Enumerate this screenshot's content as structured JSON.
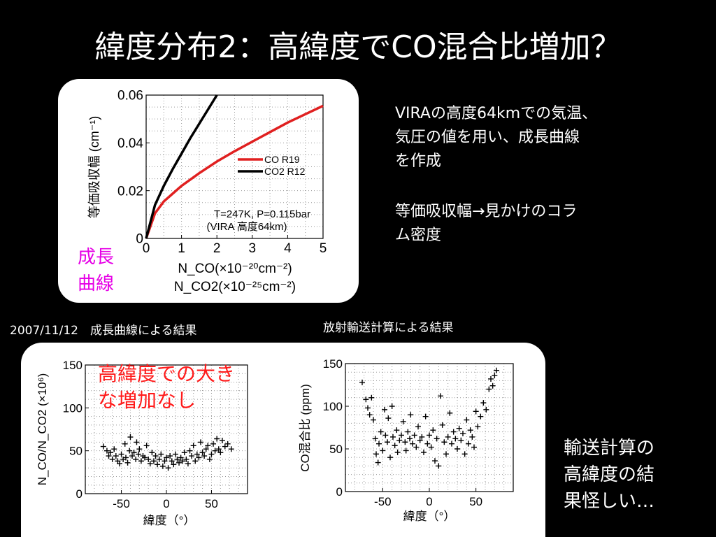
{
  "slide": {
    "title": "緯度分布2：高緯度でCO混合比増加？",
    "growth_curve_label_line1": "成長",
    "growth_curve_label_line2": "曲線",
    "note1_line1": "VIRAの高度64kmでの気温、",
    "note1_line2": "気圧の値を用い、成長曲線",
    "note1_line3": "を作成",
    "note2_line1": "等価吸収幅→見かけのコラ",
    "note2_line2": "ム密度",
    "left_caption": "2007/11/12　成長曲線による結果",
    "right_caption": "放射輸送計算による結果",
    "red_note_line1": "高緯度での大き",
    "red_note_line2": "な増加なし",
    "conclusion_line1": "輸送計算の",
    "conclusion_line2": "高緯度の結",
    "conclusion_line3": "果怪しい…"
  },
  "chart_data": [
    {
      "type": "line",
      "ylabel": "等価吸収幅 (cm⁻¹)",
      "xlabel_line1": "N_CO(×10⁻²⁰cm⁻²)",
      "xlabel_line2": "N_CO2(×10⁻²⁵cm⁻²)",
      "xlim": [
        0,
        5
      ],
      "ylim": [
        0,
        0.06
      ],
      "xticks": [
        "0",
        "1",
        "2",
        "3",
        "4",
        "5"
      ],
      "yticks": [
        "0",
        "0.02",
        "0.04",
        "0.06"
      ],
      "grid": true,
      "legend_position": "middle-right",
      "annotation_line1": "T=247K, P=0.115bar",
      "annotation_line2": "(VIRA 高度64km)",
      "series": [
        {
          "name": "CO R19",
          "color": "#e02020",
          "x": [
            0,
            0.25,
            0.5,
            1.0,
            1.5,
            2.0,
            2.5,
            3.0,
            3.5,
            4.0,
            4.5,
            5.0
          ],
          "y": [
            0,
            0.0105,
            0.0155,
            0.022,
            0.0273,
            0.0322,
            0.0365,
            0.0405,
            0.0445,
            0.0485,
            0.052,
            0.0555
          ]
        },
        {
          "name": "CO2 R12",
          "color": "#000000",
          "x": [
            0,
            0.25,
            0.5,
            0.75,
            1.0,
            1.25,
            1.5,
            1.75,
            2.0
          ],
          "y": [
            0,
            0.014,
            0.022,
            0.029,
            0.0355,
            0.042,
            0.048,
            0.054,
            0.06
          ]
        }
      ]
    },
    {
      "type": "scatter",
      "ylabel": "N_CO/N_CO2 (×10⁶)",
      "xlabel": "緯度（°）",
      "xlim": [
        -90,
        90
      ],
      "ylim": [
        0,
        150
      ],
      "xticks": [
        "-50",
        "0",
        "50"
      ],
      "yticks": [
        "0",
        "50",
        "100",
        "150"
      ],
      "grid": true,
      "marker": "+",
      "points": [
        [
          -70,
          55
        ],
        [
          -66,
          50
        ],
        [
          -64,
          44
        ],
        [
          -62,
          48
        ],
        [
          -60,
          40
        ],
        [
          -58,
          52
        ],
        [
          -56,
          44
        ],
        [
          -54,
          38
        ],
        [
          -52,
          35
        ],
        [
          -50,
          46
        ],
        [
          -48,
          40
        ],
        [
          -46,
          58
        ],
        [
          -45,
          42
        ],
        [
          -43,
          36
        ],
        [
          -41,
          50
        ],
        [
          -40,
          66
        ],
        [
          -38,
          44
        ],
        [
          -36,
          48
        ],
        [
          -34,
          40
        ],
        [
          -33,
          60
        ],
        [
          -31,
          46
        ],
        [
          -30,
          52
        ],
        [
          -28,
          38
        ],
        [
          -26,
          44
        ],
        [
          -24,
          42
        ],
        [
          -22,
          56
        ],
        [
          -20,
          40
        ],
        [
          -18,
          35
        ],
        [
          -16,
          48
        ],
        [
          -14,
          38
        ],
        [
          -12,
          44
        ],
        [
          -10,
          34
        ],
        [
          -8,
          40
        ],
        [
          -6,
          46
        ],
        [
          -4,
          32
        ],
        [
          -2,
          38
        ],
        [
          0,
          42
        ],
        [
          2,
          30
        ],
        [
          4,
          44
        ],
        [
          6,
          38
        ],
        [
          8,
          34
        ],
        [
          10,
          46
        ],
        [
          12,
          40
        ],
        [
          14,
          36
        ],
        [
          16,
          42
        ],
        [
          18,
          38
        ],
        [
          20,
          48
        ],
        [
          22,
          40
        ],
        [
          24,
          35
        ],
        [
          26,
          50
        ],
        [
          28,
          44
        ],
        [
          30,
          56
        ],
        [
          32,
          38
        ],
        [
          34,
          46
        ],
        [
          36,
          42
        ],
        [
          38,
          60
        ],
        [
          40,
          48
        ],
        [
          42,
          44
        ],
        [
          44,
          52
        ],
        [
          46,
          56
        ],
        [
          48,
          40
        ],
        [
          50,
          46
        ],
        [
          52,
          58
        ],
        [
          54,
          50
        ],
        [
          56,
          64
        ],
        [
          58,
          52
        ],
        [
          60,
          48
        ],
        [
          62,
          62
        ],
        [
          65,
          55
        ],
        [
          68,
          58
        ],
        [
          72,
          52
        ]
      ]
    },
    {
      "type": "scatter",
      "ylabel": "CO混合比 (ppm)",
      "xlabel": "緯度（°）",
      "xlim": [
        -90,
        90
      ],
      "ylim": [
        0,
        150
      ],
      "xticks": [
        "-50",
        "0",
        "50"
      ],
      "yticks": [
        "0",
        "50",
        "100",
        "150"
      ],
      "grid": true,
      "marker": "+",
      "points": [
        [
          -72,
          128
        ],
        [
          -68,
          108
        ],
        [
          -66,
          98
        ],
        [
          -64,
          90
        ],
        [
          -62,
          110
        ],
        [
          -60,
          84
        ],
        [
          -58,
          62
        ],
        [
          -57,
          44
        ],
        [
          -55,
          34
        ],
        [
          -54,
          56
        ],
        [
          -52,
          70
        ],
        [
          -50,
          48
        ],
        [
          -48,
          96
        ],
        [
          -47,
          66
        ],
        [
          -45,
          58
        ],
        [
          -44,
          86
        ],
        [
          -42,
          40
        ],
        [
          -40,
          100
        ],
        [
          -39,
          64
        ],
        [
          -37,
          54
        ],
        [
          -35,
          72
        ],
        [
          -34,
          46
        ],
        [
          -32,
          60
        ],
        [
          -30,
          66
        ],
        [
          -28,
          82
        ],
        [
          -26,
          58
        ],
        [
          -25,
          48
        ],
        [
          -23,
          70
        ],
        [
          -21,
          62
        ],
        [
          -20,
          90
        ],
        [
          -18,
          56
        ],
        [
          -16,
          66
        ],
        [
          -14,
          52
        ],
        [
          -12,
          76
        ],
        [
          -10,
          60
        ],
        [
          -8,
          64
        ],
        [
          -6,
          46
        ],
        [
          -4,
          88
        ],
        [
          -2,
          56
        ],
        [
          0,
          66
        ],
        [
          2,
          52
        ],
        [
          4,
          72
        ],
        [
          6,
          36
        ],
        [
          8,
          62
        ],
        [
          10,
          30
        ],
        [
          12,
          112
        ],
        [
          14,
          78
        ],
        [
          16,
          58
        ],
        [
          18,
          44
        ],
        [
          20,
          64
        ],
        [
          22,
          92
        ],
        [
          24,
          56
        ],
        [
          26,
          70
        ],
        [
          28,
          62
        ],
        [
          30,
          50
        ],
        [
          32,
          74
        ],
        [
          34,
          60
        ],
        [
          36,
          68
        ],
        [
          38,
          44
        ],
        [
          40,
          84
        ],
        [
          42,
          56
        ],
        [
          44,
          72
        ],
        [
          46,
          64
        ],
        [
          48,
          52
        ],
        [
          50,
          94
        ],
        [
          52,
          76
        ],
        [
          55,
          88
        ],
        [
          58,
          104
        ],
        [
          61,
          96
        ],
        [
          64,
          120
        ],
        [
          66,
          132
        ],
        [
          68,
          124
        ],
        [
          70,
          136
        ],
        [
          72,
          142
        ]
      ]
    }
  ]
}
